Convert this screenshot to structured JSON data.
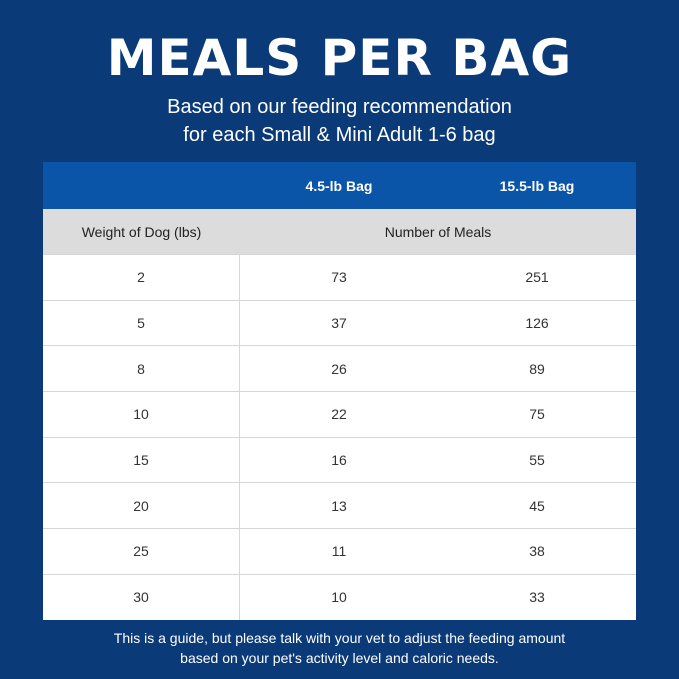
{
  "title": "MEALS PER BAG",
  "subtitle_line1": "Based on our feeding recommendation",
  "subtitle_line2": "for each Small & Mini Adult 1-6 bag",
  "table": {
    "bag_headers": [
      "4.5-lb Bag",
      "15.5-lb Bag"
    ],
    "weight_header": "Weight of Dog (lbs)",
    "meals_header": "Number of Meals",
    "rows": [
      [
        "2",
        "73",
        "251"
      ],
      [
        "5",
        "37",
        "126"
      ],
      [
        "8",
        "26",
        "89"
      ],
      [
        "10",
        "22",
        "75"
      ],
      [
        "15",
        "16",
        "55"
      ],
      [
        "20",
        "13",
        "45"
      ],
      [
        "25",
        "11",
        "38"
      ],
      [
        "30",
        "10",
        "33"
      ]
    ]
  },
  "note_line1": "This is a guide, but please talk with your vet to adjust the feeding amount",
  "note_line2": "based on your pet's activity level and caloric needs.",
  "colors": {
    "background": "#0b3a78",
    "header_band": "#0a55a8",
    "subheader": "#dcdcdc"
  }
}
